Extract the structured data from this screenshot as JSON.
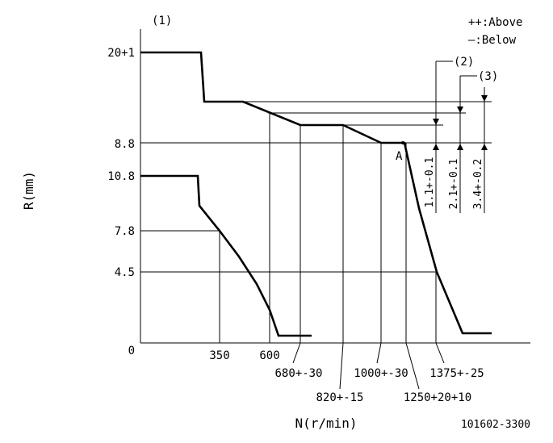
{
  "diagram": {
    "ref_1": "(1)",
    "ref_2": "(2)",
    "ref_3": "(3)",
    "legend_above": "++:Above",
    "legend_below": "—:Below",
    "r_axis_label": "R(mm)",
    "n_axis_label": "N(r/min)",
    "y_ticks": {
      "t20": "20+1",
      "t88": "8.8",
      "t108": "10.8",
      "t78": "7.8",
      "t45": "4.5",
      "t0": "0"
    },
    "x_ticks": {
      "t350": "350",
      "t600": "600",
      "t680": "680+-30",
      "t820": "820+-15",
      "t1000": "1000+-30",
      "t1250": "1250+20+10",
      "t1375": "1375+-25"
    },
    "point_a": "A",
    "dim_1": "1.1+-0.1",
    "dim_2": "2.1+-0.1",
    "dim_3": "3.4+-0.2",
    "drawing_number": "101602-3300"
  }
}
